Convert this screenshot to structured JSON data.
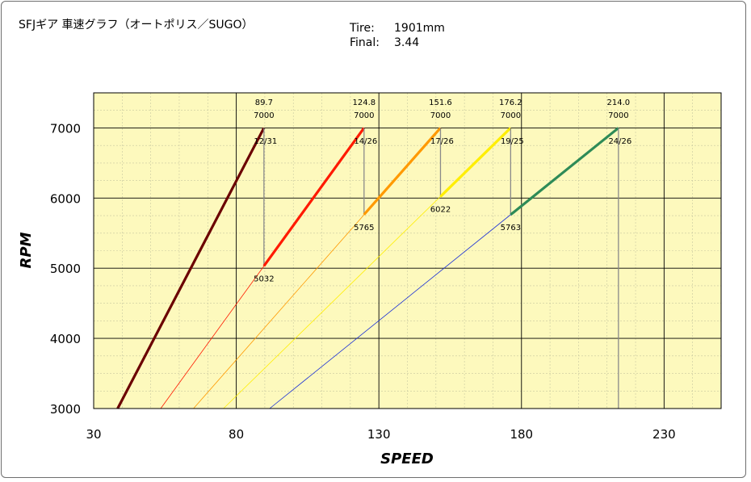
{
  "header": {
    "title": "SFJギア 車速グラフ（オートポリス／SUGO）",
    "tire_label": "Tire:",
    "tire_value": "1901mm",
    "final_label": "Final:",
    "final_value": "3.44"
  },
  "colors": {
    "plot_bg": "#fdf9bd",
    "grid_major": "#000000",
    "grid_minor": "#c8c8a0",
    "drop_line": "#8a8a8a"
  },
  "chart_data": {
    "type": "line",
    "xlabel": "SPEED",
    "ylabel": "RPM",
    "xlim": [
      30,
      250
    ],
    "ylim": [
      3000,
      7500
    ],
    "x_ticks": [
      "30",
      "80",
      "130",
      "180",
      "230"
    ],
    "y_ticks": [
      "3000",
      "4000",
      "5000",
      "6000",
      "7000"
    ],
    "x_tick_values": [
      30,
      80,
      130,
      180,
      230
    ],
    "y_tick_values": [
      3000,
      4000,
      5000,
      6000,
      7000
    ],
    "grid": true,
    "series": [
      {
        "name": "12/31",
        "color": "#6b0000",
        "full_line_from": [
          38.4,
          3000
        ],
        "bold_from": [
          38.4,
          3000
        ],
        "to": [
          89.7,
          7000
        ]
      },
      {
        "name": "14/26",
        "color": "#ff1a00",
        "full_line_from": [
          53.5,
          3000
        ],
        "bold_from": [
          89.7,
          5032
        ],
        "to": [
          124.8,
          7000
        ]
      },
      {
        "name": "17/26",
        "color": "#ff9900",
        "full_line_from": [
          65.0,
          3000
        ],
        "bold_from": [
          124.8,
          5765
        ],
        "to": [
          151.6,
          7000
        ]
      },
      {
        "name": "19/25",
        "color": "#ffee00",
        "full_line_from": [
          75.5,
          3000
        ],
        "bold_from": [
          151.6,
          6022
        ],
        "to": [
          176.2,
          7000
        ]
      },
      {
        "name": "24/26",
        "color": "#2e8b57",
        "thin_color": "#1a2fd6",
        "full_line_from": [
          91.7,
          3000
        ],
        "bold_from": [
          176.2,
          5763
        ],
        "to": [
          214.0,
          7000
        ]
      }
    ],
    "annotations": {
      "top_speeds": [
        "89.7",
        "124.8",
        "151.6",
        "176.2",
        "214.0"
      ],
      "top_rpm": [
        "7000",
        "7000",
        "7000",
        "7000",
        "7000"
      ],
      "drop_rpms": [
        "5032",
        "5765",
        "6022",
        "5763"
      ]
    }
  }
}
